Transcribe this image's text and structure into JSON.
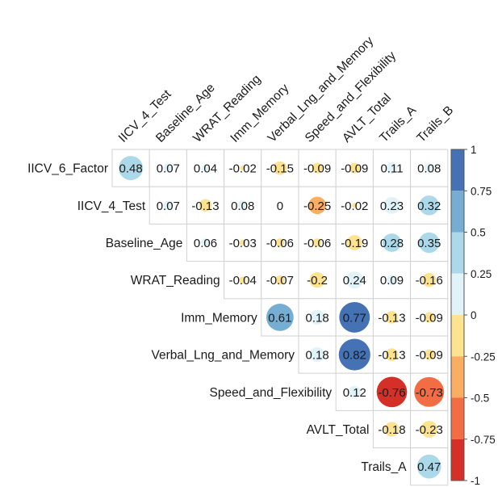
{
  "chart_data": {
    "type": "heatmap",
    "style": "upper-triangle correlation matrix (corrplot mixed: circles + numbers)",
    "columns": [
      "IICV_4_Test",
      "Baseline_Age",
      "WRAT_Reading",
      "Imm_Memory",
      "Verbal_Lng_and_Memory",
      "Speed_and_Flexibility",
      "AVLT_Total",
      "Trails_A",
      "Trails_B"
    ],
    "rows": [
      "IICV_6_Factor",
      "IICV_4_Test",
      "Baseline_Age",
      "WRAT_Reading",
      "Imm_Memory",
      "Verbal_Lng_and_Memory",
      "Speed_and_Flexibility",
      "AVLT_Total",
      "Trails_A"
    ],
    "cells": [
      [
        "0.48",
        "0.07",
        "0.04",
        "-0.02",
        "-0.15",
        "-0.09",
        "-0.09",
        "0.11",
        "0.08"
      ],
      [
        null,
        "0.07",
        "-0.13",
        "0.08",
        "0",
        "-0.25",
        "-0.02",
        "0.23",
        "0.32"
      ],
      [
        null,
        null,
        "0.06",
        "-0.03",
        "-0.06",
        "-0.06",
        "-0.19",
        "0.28",
        "0.35"
      ],
      [
        null,
        null,
        null,
        "-0.04",
        "-0.07",
        "-0.2",
        "0.24",
        "0.09",
        "-0.16"
      ],
      [
        null,
        null,
        null,
        null,
        "0.61",
        "0.18",
        "0.77",
        "-0.13",
        "-0.09"
      ],
      [
        null,
        null,
        null,
        null,
        null,
        "0.18",
        "0.82",
        "-0.13",
        "-0.09"
      ],
      [
        null,
        null,
        null,
        null,
        null,
        null,
        "0.12",
        "-0.76",
        "-0.73"
      ],
      [
        null,
        null,
        null,
        null,
        null,
        null,
        null,
        "-0.18",
        "-0.23"
      ],
      [
        null,
        null,
        null,
        null,
        null,
        null,
        null,
        null,
        "0.47"
      ]
    ],
    "colorbar": {
      "ticks": [
        "1",
        "0.75",
        "0.5",
        "0.25",
        "0",
        "-0.25",
        "-0.5",
        "-0.75",
        "-1"
      ],
      "range": [
        -1,
        1
      ],
      "bands": [
        {
          "from": 0.75,
          "to": 1,
          "color": "#4472b4"
        },
        {
          "from": 0.5,
          "to": 0.75,
          "color": "#75aed2"
        },
        {
          "from": 0.25,
          "to": 0.5,
          "color": "#acd9e9"
        },
        {
          "from": 0,
          "to": 0.25,
          "color": "#e1f3f8"
        },
        {
          "from": -0.25,
          "to": 0,
          "color": "#fde28f"
        },
        {
          "from": -0.5,
          "to": -0.25,
          "color": "#fbae61"
        },
        {
          "from": -0.75,
          "to": -0.5,
          "color": "#f26d43"
        },
        {
          "from": -1,
          "to": -0.75,
          "color": "#d53027"
        }
      ]
    },
    "grid": true,
    "legend_placement": "right"
  }
}
